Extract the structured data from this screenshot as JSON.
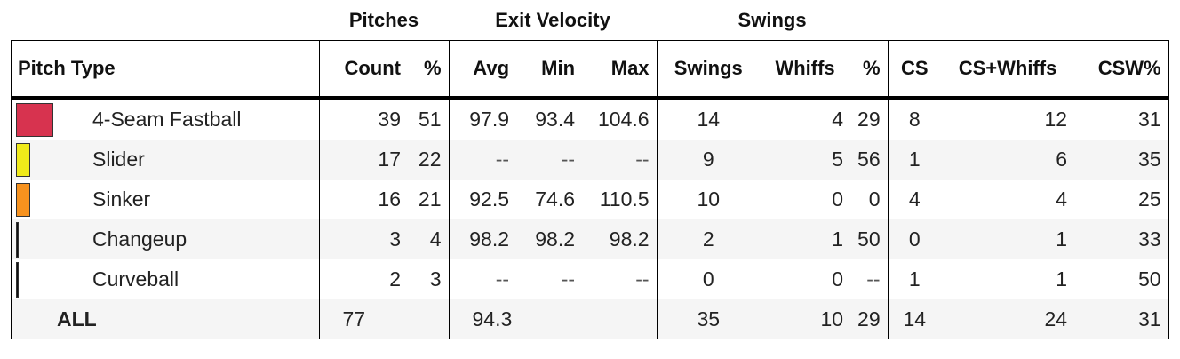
{
  "groups": {
    "pitches": "Pitches",
    "exit_velocity": "Exit Velocity",
    "swings": "Swings"
  },
  "headers": [
    "Pitch Type",
    "Count",
    "%",
    "Avg",
    "Min",
    "Max",
    "Swings",
    "Whiffs",
    "%",
    "CS",
    "CS+Whiffs",
    "CSW%"
  ],
  "rows": [
    {
      "name": "4-Seam Fastball",
      "color": "#d7334f",
      "count": "39",
      "pct": "51",
      "avg": "97.9",
      "min": "93.4",
      "max": "104.6",
      "swings": "14",
      "whiffs": "4",
      "whiff_pct": "29",
      "cs": "8",
      "csw": "12",
      "csw_pct": "31"
    },
    {
      "name": "Slider",
      "color": "#f0ea1a",
      "count": "17",
      "pct": "22",
      "avg": "--",
      "min": "--",
      "max": "--",
      "swings": "9",
      "whiffs": "5",
      "whiff_pct": "56",
      "cs": "1",
      "csw": "6",
      "csw_pct": "35"
    },
    {
      "name": "Sinker",
      "color": "#f7921e",
      "count": "16",
      "pct": "21",
      "avg": "92.5",
      "min": "74.6",
      "max": "110.5",
      "swings": "10",
      "whiffs": "0",
      "whiff_pct": "0",
      "cs": "4",
      "csw": "4",
      "csw_pct": "25"
    },
    {
      "name": "Changeup",
      "color": "#111111",
      "count": "3",
      "pct": "4",
      "avg": "98.2",
      "min": "98.2",
      "max": "98.2",
      "swings": "2",
      "whiffs": "1",
      "whiff_pct": "50",
      "cs": "0",
      "csw": "1",
      "csw_pct": "33"
    },
    {
      "name": "Curveball",
      "color": "#111111",
      "count": "2",
      "pct": "3",
      "avg": "--",
      "min": "--",
      "max": "--",
      "swings": "0",
      "whiffs": "0",
      "whiff_pct": "--",
      "cs": "1",
      "csw": "1",
      "csw_pct": "50"
    }
  ],
  "totals": {
    "name": "ALL",
    "count": "77",
    "avg": "94.3",
    "swings": "35",
    "whiffs": "10",
    "whiff_pct": "29",
    "cs": "14",
    "csw": "24",
    "csw_pct": "31"
  }
}
